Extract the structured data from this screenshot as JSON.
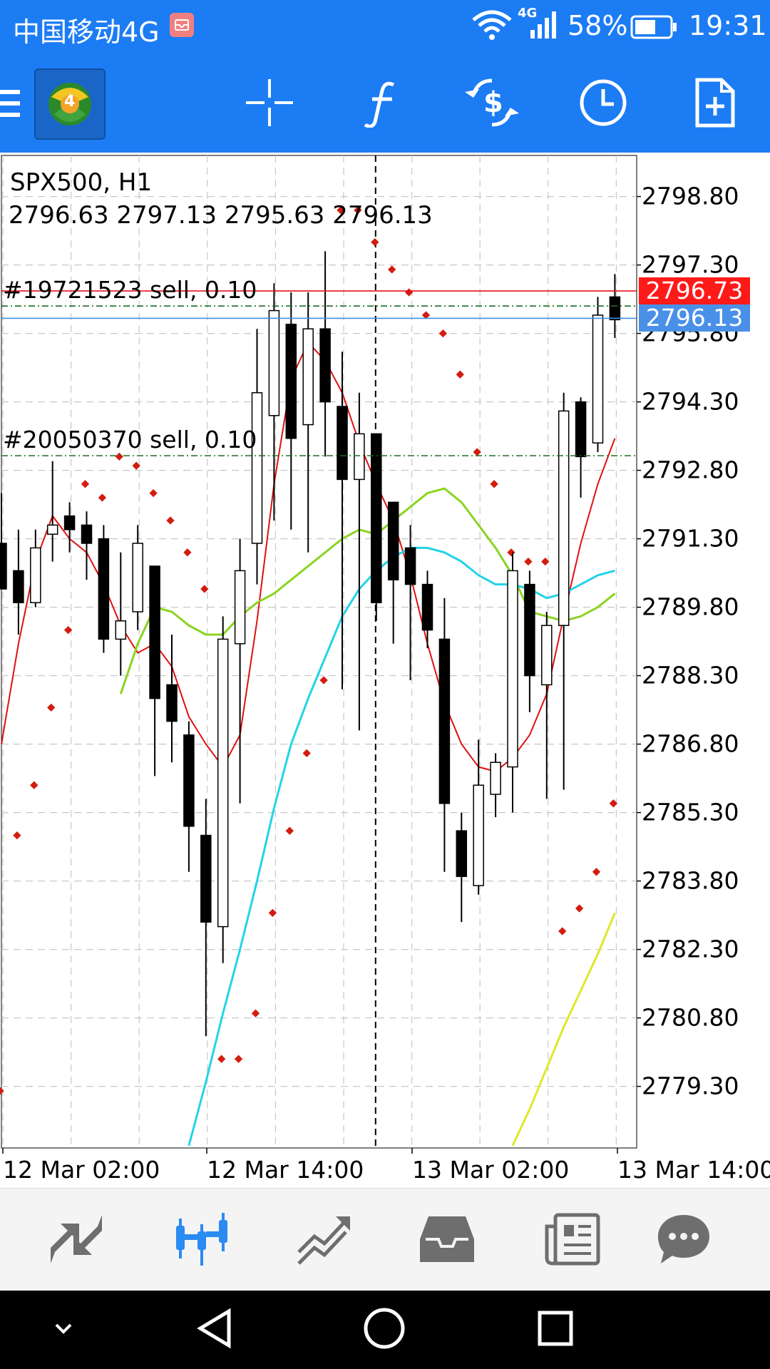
{
  "status_bar": {
    "carrier": "中国移动4G",
    "network_badge": "4G",
    "battery_percent": "58%",
    "time": "19:31",
    "icons": [
      "notification-app-icon",
      "wifi-icon",
      "signal-icon",
      "battery-icon"
    ]
  },
  "toolbar": {
    "icons": [
      "menu-icon",
      "metatrader-logo",
      "crosshair-icon",
      "indicators-f-icon",
      "change-symbol-icon",
      "timeframe-clock-icon",
      "new-order-icon"
    ],
    "logo_number": "4"
  },
  "chart": {
    "symbol_label": "SPX500, H1",
    "ohlc_label": "2796.63 2797.13 2795.63 2796.13",
    "orders": [
      {
        "label": "#19721523 sell, 0.10",
        "price": 2796.4
      },
      {
        "label": "#20050370 sell, 0.10",
        "price": 2793.12
      }
    ],
    "ask_price": "2796.73",
    "bid_price": "2796.13",
    "y_ticks": [
      "2798.80",
      "2797.30",
      "2795.80",
      "2794.30",
      "2792.80",
      "2791.30",
      "2789.80",
      "2788.30",
      "2786.80",
      "2785.30",
      "2783.80",
      "2782.30",
      "2780.80",
      "2779.30"
    ],
    "x_ticks": [
      "12 Mar 02:00",
      "12 Mar 14:00",
      "13 Mar 02:00",
      "13 Mar 14:00"
    ],
    "colors": {
      "background": "#ffffff",
      "grid": "#c8c8c8",
      "ask_line": "#e8101e",
      "bid_line": "#3f8fe0",
      "order_line": "#1f6e1f",
      "red_ma": "#e01010",
      "green_ma": "#8ad420",
      "cyan_ma": "#22d3e8",
      "yellow_ma": "#dfe82a",
      "sar_dots": "#d31c10",
      "ask_label_bg": "#ff1a1a",
      "bid_label_bg": "#4a90e8"
    }
  },
  "chart_data": {
    "type": "candlestick",
    "symbol": "SPX500",
    "timeframe": "H1",
    "ylim": [
      2777.95,
      2799.7
    ],
    "x_labels": [
      "12 Mar 02:00",
      "12 Mar 14:00",
      "13 Mar 02:00",
      "13 Mar 14:00"
    ],
    "candles": [
      {
        "o": 2791.2,
        "h": 2792.3,
        "l": 2790.2,
        "c": 2790.2
      },
      {
        "o": 2790.6,
        "h": 2791.5,
        "l": 2789.2,
        "c": 2789.9
      },
      {
        "o": 2789.9,
        "h": 2791.5,
        "l": 2789.8,
        "c": 2791.1
      },
      {
        "o": 2791.4,
        "h": 2793.0,
        "l": 2790.8,
        "c": 2791.6
      },
      {
        "o": 2791.8,
        "h": 2792.1,
        "l": 2791.0,
        "c": 2791.5
      },
      {
        "o": 2791.6,
        "h": 2791.9,
        "l": 2790.4,
        "c": 2791.2
      },
      {
        "o": 2791.3,
        "h": 2791.6,
        "l": 2788.8,
        "c": 2789.1
      },
      {
        "o": 2789.1,
        "h": 2791.0,
        "l": 2788.3,
        "c": 2789.5
      },
      {
        "o": 2789.7,
        "h": 2791.6,
        "l": 2789.3,
        "c": 2791.2
      },
      {
        "o": 2790.7,
        "h": 2790.7,
        "l": 2786.1,
        "c": 2787.8
      },
      {
        "o": 2788.1,
        "h": 2789.2,
        "l": 2786.4,
        "c": 2787.3
      },
      {
        "o": 2787.0,
        "h": 2787.3,
        "l": 2784.0,
        "c": 2785.0
      },
      {
        "o": 2784.8,
        "h": 2785.6,
        "l": 2780.4,
        "c": 2782.9
      },
      {
        "o": 2782.8,
        "h": 2789.6,
        "l": 2782.0,
        "c": 2789.1
      },
      {
        "o": 2789.0,
        "h": 2791.3,
        "l": 2785.5,
        "c": 2790.6
      },
      {
        "o": 2791.2,
        "h": 2795.9,
        "l": 2790.3,
        "c": 2794.5
      },
      {
        "o": 2794.0,
        "h": 2796.9,
        "l": 2791.7,
        "c": 2796.3
      },
      {
        "o": 2796.0,
        "h": 2796.7,
        "l": 2791.5,
        "c": 2793.5
      },
      {
        "o": 2793.8,
        "h": 2796.7,
        "l": 2791.0,
        "c": 2795.9
      },
      {
        "o": 2795.9,
        "h": 2797.6,
        "l": 2793.1,
        "c": 2794.3
      },
      {
        "o": 2794.2,
        "h": 2795.4,
        "l": 2788.0,
        "c": 2792.6
      },
      {
        "o": 2792.6,
        "h": 2794.5,
        "l": 2787.1,
        "c": 2793.6
      },
      {
        "o": 2793.6,
        "h": 2793.6,
        "l": 2789.5,
        "c": 2789.9
      },
      {
        "o": 2792.1,
        "h": 2792.1,
        "l": 2789.0,
        "c": 2790.4
      },
      {
        "o": 2791.1,
        "h": 2791.6,
        "l": 2788.2,
        "c": 2790.3
      },
      {
        "o": 2790.3,
        "h": 2790.6,
        "l": 2788.9,
        "c": 2789.3
      },
      {
        "o": 2789.1,
        "h": 2790.0,
        "l": 2784.0,
        "c": 2785.5
      },
      {
        "o": 2784.9,
        "h": 2785.3,
        "l": 2782.9,
        "c": 2783.9
      },
      {
        "o": 2783.7,
        "h": 2786.9,
        "l": 2783.5,
        "c": 2785.9
      },
      {
        "o": 2785.7,
        "h": 2786.6,
        "l": 2785.2,
        "c": 2786.4
      },
      {
        "o": 2786.3,
        "h": 2791.0,
        "l": 2785.3,
        "c": 2790.6
      },
      {
        "o": 2790.3,
        "h": 2790.6,
        "l": 2787.5,
        "c": 2788.3
      },
      {
        "o": 2788.1,
        "h": 2789.7,
        "l": 2785.6,
        "c": 2789.4
      },
      {
        "o": 2789.4,
        "h": 2794.5,
        "l": 2785.8,
        "c": 2794.1
      },
      {
        "o": 2794.3,
        "h": 2794.4,
        "l": 2792.2,
        "c": 2793.1
      },
      {
        "o": 2793.4,
        "h": 2796.6,
        "l": 2793.2,
        "c": 2796.2
      },
      {
        "o": 2796.6,
        "h": 2797.1,
        "l": 2795.7,
        "c": 2796.1
      }
    ],
    "series": [
      {
        "name": "",
        "color": "#e01010",
        "values": [
          2786.8,
          2789.0,
          2790.8,
          2791.8,
          2791.3,
          2791.0,
          2790.3,
          2789.4,
          2788.8,
          2789.0,
          2788.5,
          2787.4,
          2786.8,
          2786.3,
          2787.0,
          2789.5,
          2792.5,
          2794.8,
          2795.6,
          2795.2,
          2794.5,
          2793.4,
          2792.5,
          2791.7,
          2790.5,
          2789.0,
          2787.7,
          2786.8,
          2786.3,
          2786.2,
          2786.5,
          2787.0,
          2787.9,
          2789.6,
          2791.2,
          2792.5,
          2793.5
        ]
      },
      {
        "name": "",
        "color": "#8ad420",
        "values": [
          null,
          null,
          null,
          null,
          null,
          null,
          null,
          2787.9,
          2789.0,
          2789.8,
          2789.7,
          2789.4,
          2789.2,
          2789.2,
          2789.6,
          2789.9,
          2790.1,
          2790.4,
          2790.7,
          2791.0,
          2791.3,
          2791.5,
          2791.4,
          2791.7,
          2792.0,
          2792.3,
          2792.4,
          2792.1,
          2791.6,
          2791.1,
          2790.5,
          2789.7,
          2789.6,
          2789.5,
          2789.6,
          2789.8,
          2790.1
        ]
      },
      {
        "name": "",
        "color": "#22d3e8",
        "values": [
          null,
          null,
          null,
          null,
          null,
          null,
          null,
          null,
          null,
          null,
          null,
          2778.0,
          2779.4,
          2780.9,
          2782.3,
          2783.8,
          2785.4,
          2786.8,
          2787.8,
          2788.7,
          2789.6,
          2790.2,
          2790.6,
          2790.9,
          2791.1,
          2791.1,
          2791.0,
          2790.8,
          2790.5,
          2790.3,
          2790.3,
          2790.2,
          2790.0,
          2790.1,
          2790.3,
          2790.5,
          2790.6
        ]
      },
      {
        "name": "",
        "color": "#dfe82a",
        "values": [
          null,
          null,
          null,
          null,
          null,
          null,
          null,
          null,
          null,
          null,
          null,
          null,
          null,
          null,
          null,
          null,
          null,
          null,
          null,
          null,
          null,
          null,
          null,
          null,
          null,
          null,
          null,
          null,
          null,
          null,
          2778.0,
          2778.8,
          2779.7,
          2780.6,
          2781.4,
          2782.2,
          2783.1
        ]
      }
    ],
    "sar": [
      2779.2,
      2784.8,
      2785.9,
      2787.6,
      2789.3,
      2792.5,
      2792.2,
      2793.1,
      2792.9,
      2792.3,
      2791.7,
      2791.0,
      2790.2,
      2779.9,
      2779.9,
      2780.9,
      2783.1,
      2784.9,
      2786.6,
      2788.2,
      2798.5,
      2798.5,
      2797.8,
      2797.2,
      2796.7,
      2796.2,
      2795.8,
      2794.9,
      2793.2,
      2792.5,
      2791.0,
      2790.8,
      2790.8,
      2782.7,
      2783.2,
      2784.0,
      2785.5
    ],
    "dashed_crosshair_index": 22
  },
  "bottom_tabs": {
    "icons": [
      "quotes-icon",
      "chart-tab-icon",
      "trade-icon",
      "history-icon",
      "news-icon",
      "chat-icon"
    ],
    "active_index": 1
  },
  "nav_bar": {
    "icons": [
      "collapse-icon",
      "back-icon",
      "home-icon",
      "recents-icon"
    ]
  }
}
